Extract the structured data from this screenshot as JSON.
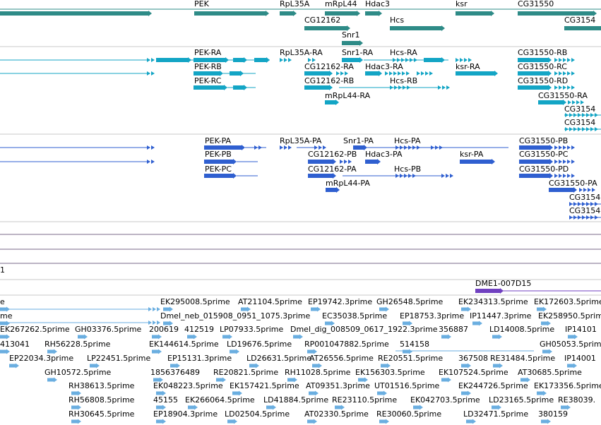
{
  "colors": {
    "gene": "#2e8b87",
    "transcript_rna": "#13a5c5",
    "protein": "#2f5fd0",
    "track_line": "#7a6a8a",
    "est": "#6aaee0",
    "dme_feature": "#7040c0",
    "divider": "#c8c8c8"
  },
  "gene_track": [
    {
      "label": "PEK"
    },
    {
      "label": "RpL35A"
    },
    {
      "label": "mRpL44"
    },
    {
      "label": "Hdac3"
    },
    {
      "label": "ksr"
    },
    {
      "label": "CG31550"
    },
    {
      "label": "CG12162"
    },
    {
      "label": "Hcs"
    },
    {
      "label": "CG3154"
    },
    {
      "label": "Snr1"
    }
  ],
  "rna_track": [
    {
      "label": "PEK-RA"
    },
    {
      "label": "RpL35A-RA"
    },
    {
      "label": "Snr1-RA"
    },
    {
      "label": "Hcs-RA"
    },
    {
      "label": "CG31550-RB"
    },
    {
      "label": "PEK-RB"
    },
    {
      "label": "CG12162-RA"
    },
    {
      "label": "Hdac3-RA"
    },
    {
      "label": "ksr-RA"
    },
    {
      "label": "CG31550-RC"
    },
    {
      "label": "PEK-RC"
    },
    {
      "label": "CG12162-RB"
    },
    {
      "label": "Hcs-RB"
    },
    {
      "label": "CG31550-RD"
    },
    {
      "label": "mRpL44-RA"
    },
    {
      "label": "CG31550-RA"
    },
    {
      "label": "CG3154"
    },
    {
      "label": "CG3154"
    }
  ],
  "protein_track": [
    {
      "label": "PEK-PA"
    },
    {
      "label": "RpL35A-PA"
    },
    {
      "label": "Snr1-PA"
    },
    {
      "label": "Hcs-PA"
    },
    {
      "label": "CG31550-PB"
    },
    {
      "label": "PEK-PB"
    },
    {
      "label": "CG12162-PB"
    },
    {
      "label": "Hdac3-PA"
    },
    {
      "label": "ksr-PA"
    },
    {
      "label": "CG31550-PC"
    },
    {
      "label": "PEK-PC"
    },
    {
      "label": "CG12162-PA"
    },
    {
      "label": "Hcs-PB"
    },
    {
      "label": "CG31550-PD"
    },
    {
      "label": "mRpL44-PA"
    },
    {
      "label": "CG31550-PA"
    },
    {
      "label": "CG3154"
    },
    {
      "label": "CG3154"
    }
  ],
  "misc_track": [
    {
      "label": "1"
    },
    {
      "label": "DME1-007D15"
    }
  ],
  "est_track": [
    {
      "label": "e"
    },
    {
      "label": "EK295008.5prime"
    },
    {
      "label": "AT21104.5prime"
    },
    {
      "label": "EP19742.3prime"
    },
    {
      "label": "GH26548.5prime"
    },
    {
      "label": "EK234313.5prime"
    },
    {
      "label": "EK172603.5prime"
    },
    {
      "label": "me"
    },
    {
      "label": "Dmel_neb_015908_0951_1075.3prime"
    },
    {
      "label": "EC35038.5prime"
    },
    {
      "label": "EP18753.3prime"
    },
    {
      "label": "IP11447.3prime"
    },
    {
      "label": "EK258950.5prime"
    },
    {
      "label": "EK267262.5prime"
    },
    {
      "label": "GH03376.5prime"
    },
    {
      "label": "200619"
    },
    {
      "label": "412519"
    },
    {
      "label": "LP07933.5prime"
    },
    {
      "label": "Dmel_dig_008509_0617_1922.3prime"
    },
    {
      "label": "356887"
    },
    {
      "label": "LD14008.5prime"
    },
    {
      "label": "IP14101"
    },
    {
      "label": "413041"
    },
    {
      "label": "RH56228.5prime"
    },
    {
      "label": "EK144614.5prime"
    },
    {
      "label": "LD19676.5prime"
    },
    {
      "label": "RP001047882.5prime"
    },
    {
      "label": "514158"
    },
    {
      "label": "GH05053.5prime"
    },
    {
      "label": "EP22034.3prime"
    },
    {
      "label": "LP22451.5prime"
    },
    {
      "label": "EP15131.3prime"
    },
    {
      "label": "LD26631.5prime"
    },
    {
      "label": "AT26556.5prime"
    },
    {
      "label": "RE20551.5prime"
    },
    {
      "label": "367508"
    },
    {
      "label": "RE31484.5prime"
    },
    {
      "label": "IP14001"
    },
    {
      "label": "GH10572.5prime"
    },
    {
      "label": "1856376489"
    },
    {
      "label": "RE20821.5prime"
    },
    {
      "label": "RH11028.5prime"
    },
    {
      "label": "EK156303.5prime"
    },
    {
      "label": "EK107524.5prime"
    },
    {
      "label": "AT30685.5prime"
    },
    {
      "label": "RH38613.5prime"
    },
    {
      "label": "EK048223.5prime"
    },
    {
      "label": "EK157421.5prime"
    },
    {
      "label": "AT09351.3prime"
    },
    {
      "label": "UT01516.5prime"
    },
    {
      "label": "EK244726.5prime"
    },
    {
      "label": "EK173356.5prime"
    },
    {
      "label": "RH56808.5prime"
    },
    {
      "label": "45155"
    },
    {
      "label": "EK266064.5prime"
    },
    {
      "label": "LD41884.5prime"
    },
    {
      "label": "RE23110.5prime"
    },
    {
      "label": "EK042703.5prime"
    },
    {
      "label": "LD23165.5prime"
    },
    {
      "label": "RE38039."
    },
    {
      "label": "RH30645.5prime"
    },
    {
      "label": "EP18904.3prime"
    },
    {
      "label": "LD02504.5prime"
    },
    {
      "label": "AT02330.5prime"
    },
    {
      "label": "RE30060.5prime"
    },
    {
      "label": "LD32471.5prime"
    },
    {
      "label": "380159"
    }
  ]
}
